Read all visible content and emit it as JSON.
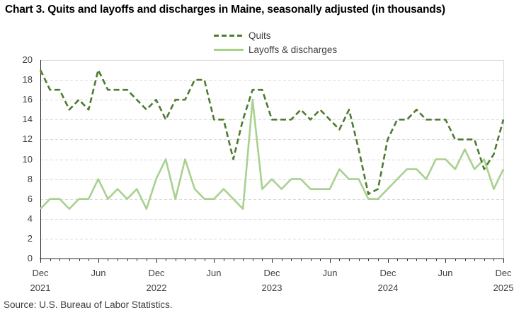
{
  "title": "Chart 3. Quits and layoffs and discharges in Maine, seasonally adjusted (in thousands)",
  "source_note": "Source: U.S. Bureau of Labor Statistics.",
  "legend": {
    "quits_label": "Quits",
    "layoffs_label": "Layoffs & discharges"
  },
  "colors": {
    "quits": "#4d7b2f",
    "layoffs": "#a9d18e",
    "grid": "#d9d9d9",
    "plot_border": "#d9d9d9",
    "axis": "#262626",
    "tick_text": "#404040"
  },
  "chart_data": {
    "type": "line",
    "title": "Chart 3. Quits and layoffs and discharges in Maine, seasonally adjusted (in thousands)",
    "xlabel": "",
    "ylabel": "",
    "ylim": [
      0,
      20
    ],
    "ytick_step": 2,
    "grid": "horizontal-dashed",
    "legend_position": "top-center",
    "x": [
      "Dec 2021",
      "Jan 2022",
      "Feb 2022",
      "Mar 2022",
      "Apr 2022",
      "May 2022",
      "Jun 2022",
      "Jul 2022",
      "Aug 2022",
      "Sep 2022",
      "Oct 2022",
      "Nov 2022",
      "Dec 2022",
      "Jan 2023",
      "Feb 2023",
      "Mar 2023",
      "Apr 2023",
      "May 2023",
      "Jun 2023",
      "Jul 2023",
      "Aug 2023",
      "Sep 2023",
      "Oct 2023",
      "Nov 2023",
      "Dec 2023",
      "Jan 2024",
      "Feb 2024",
      "Mar 2024",
      "Apr 2024",
      "May 2024",
      "Jun 2024",
      "Jul 2024",
      "Aug 2024",
      "Sep 2024",
      "Oct 2024",
      "Nov 2024",
      "Dec 2024",
      "Jan 2025",
      "Feb 2025",
      "Mar 2025",
      "Apr 2025",
      "May 2025",
      "Jun 2025",
      "Jul 2025",
      "Aug 2025",
      "Sep 2025",
      "Oct 2025",
      "Nov 2025",
      "Dec 2025"
    ],
    "x_major_ticks": [
      {
        "index": 0,
        "label": "Dec",
        "year": "2021"
      },
      {
        "index": 6,
        "label": "Jun",
        "year": ""
      },
      {
        "index": 12,
        "label": "Dec",
        "year": "2022"
      },
      {
        "index": 18,
        "label": "Jun",
        "year": ""
      },
      {
        "index": 24,
        "label": "Dec",
        "year": "2023"
      },
      {
        "index": 30,
        "label": "Jun",
        "year": ""
      },
      {
        "index": 36,
        "label": "Dec",
        "year": "2024"
      },
      {
        "index": 42,
        "label": "Jun",
        "year": ""
      },
      {
        "index": 48,
        "label": "Dec",
        "year": "2025"
      }
    ],
    "series": [
      {
        "name": "Quits",
        "line_style": "dashed",
        "color": "#4d7b2f",
        "values": [
          19,
          17,
          17,
          15,
          16,
          15,
          19,
          17,
          17,
          17,
          16,
          15,
          16,
          14,
          16,
          16,
          18,
          18,
          14,
          14,
          10,
          14,
          17,
          17,
          14,
          14,
          14,
          15,
          14,
          15,
          14,
          13,
          15,
          11,
          6.5,
          7,
          12,
          14,
          14,
          15,
          14,
          14,
          14,
          12,
          12,
          12,
          9,
          10.5,
          14
        ]
      },
      {
        "name": "Layoffs & discharges",
        "line_style": "solid",
        "color": "#a9d18e",
        "values": [
          5,
          6,
          6,
          5,
          6,
          6,
          8,
          6,
          7,
          6,
          7,
          5,
          8,
          10,
          6,
          10,
          7,
          6,
          6,
          7,
          6,
          5,
          16,
          7,
          8,
          7,
          8,
          8,
          7,
          7,
          7,
          9,
          8,
          8,
          6,
          6,
          7,
          8,
          9,
          9,
          8,
          10,
          10,
          9,
          11,
          9,
          10,
          7,
          9
        ]
      }
    ]
  }
}
